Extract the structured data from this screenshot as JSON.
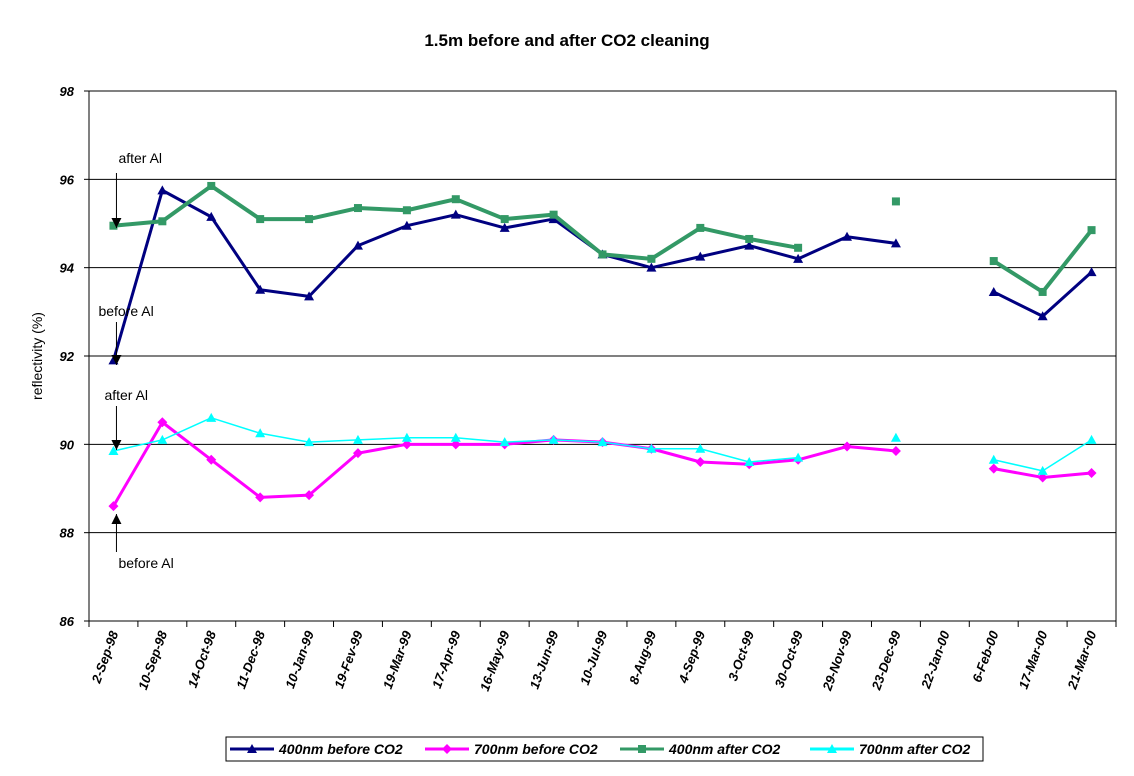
{
  "chart_data": {
    "type": "line",
    "title": "1.5m before and after CO2 cleaning",
    "ylabel": "reflectivity (%)",
    "xlabel": "",
    "ylim": [
      86,
      98
    ],
    "yticks": [
      "86",
      "88",
      "90",
      "92",
      "94",
      "96",
      "98"
    ],
    "grid": "horizontal",
    "legend_position": "bottom",
    "categories": [
      "2-Sep-98",
      "10-Sep-98",
      "14-Oct-98",
      "11-Dec-98",
      "10-Jan-99",
      "19-Fev-99",
      "19-Mar-99",
      "17-Apr-99",
      "16-May-99",
      "13-Jun-99",
      "10-Jul-99",
      "8-Aug-99",
      "4-Sep-99",
      "3-Oct-99",
      "30-Oct-99",
      "29-Nov-99",
      "23-Dec-99",
      "22-Jan-00",
      "6-Feb-00",
      "17-Mar-00",
      "21-Mar-00"
    ],
    "series": [
      {
        "name": "400nm before CO2",
        "color": "#000080",
        "marker": "triangle",
        "values": [
          91.9,
          95.75,
          95.15,
          93.5,
          93.35,
          94.5,
          94.95,
          95.2,
          94.9,
          95.1,
          94.3,
          94.0,
          94.25,
          94.5,
          94.2,
          94.7,
          94.55,
          null,
          93.45,
          92.9,
          93.9
        ]
      },
      {
        "name": "700nm before CO2",
        "color": "#ff00ff",
        "marker": "diamond",
        "values": [
          88.6,
          90.5,
          89.65,
          88.8,
          88.85,
          89.8,
          90.0,
          90.0,
          90.0,
          90.1,
          90.05,
          89.9,
          89.6,
          89.55,
          89.65,
          89.95,
          89.85,
          null,
          89.45,
          89.25,
          89.35
        ]
      },
      {
        "name": "400nm after CO2",
        "color": "#339966",
        "marker": "square",
        "values": [
          94.95,
          95.05,
          95.85,
          95.1,
          95.1,
          95.35,
          95.3,
          95.55,
          95.1,
          95.2,
          94.3,
          94.2,
          94.9,
          94.65,
          94.45,
          null,
          95.5,
          null,
          94.15,
          93.45,
          94.85
        ]
      },
      {
        "name": "700nm after CO2",
        "color": "#00ffff",
        "marker": "triangle",
        "values": [
          89.85,
          90.1,
          90.6,
          90.25,
          90.05,
          90.1,
          90.15,
          90.15,
          90.05,
          90.1,
          90.05,
          89.9,
          89.9,
          89.6,
          89.7,
          null,
          90.15,
          null,
          89.65,
          89.4,
          90.1
        ]
      }
    ],
    "annotations": [
      {
        "text": "after Al",
        "category": "2-Sep-98",
        "points_to": 95.0
      },
      {
        "text": "before Al",
        "category": "2-Sep-98",
        "points_to": 91.9
      },
      {
        "text": "after Al",
        "category": "2-Sep-98",
        "points_to": 89.9
      },
      {
        "text": "before Al",
        "category": "2-Sep-98",
        "points_to": 88.3
      }
    ]
  }
}
